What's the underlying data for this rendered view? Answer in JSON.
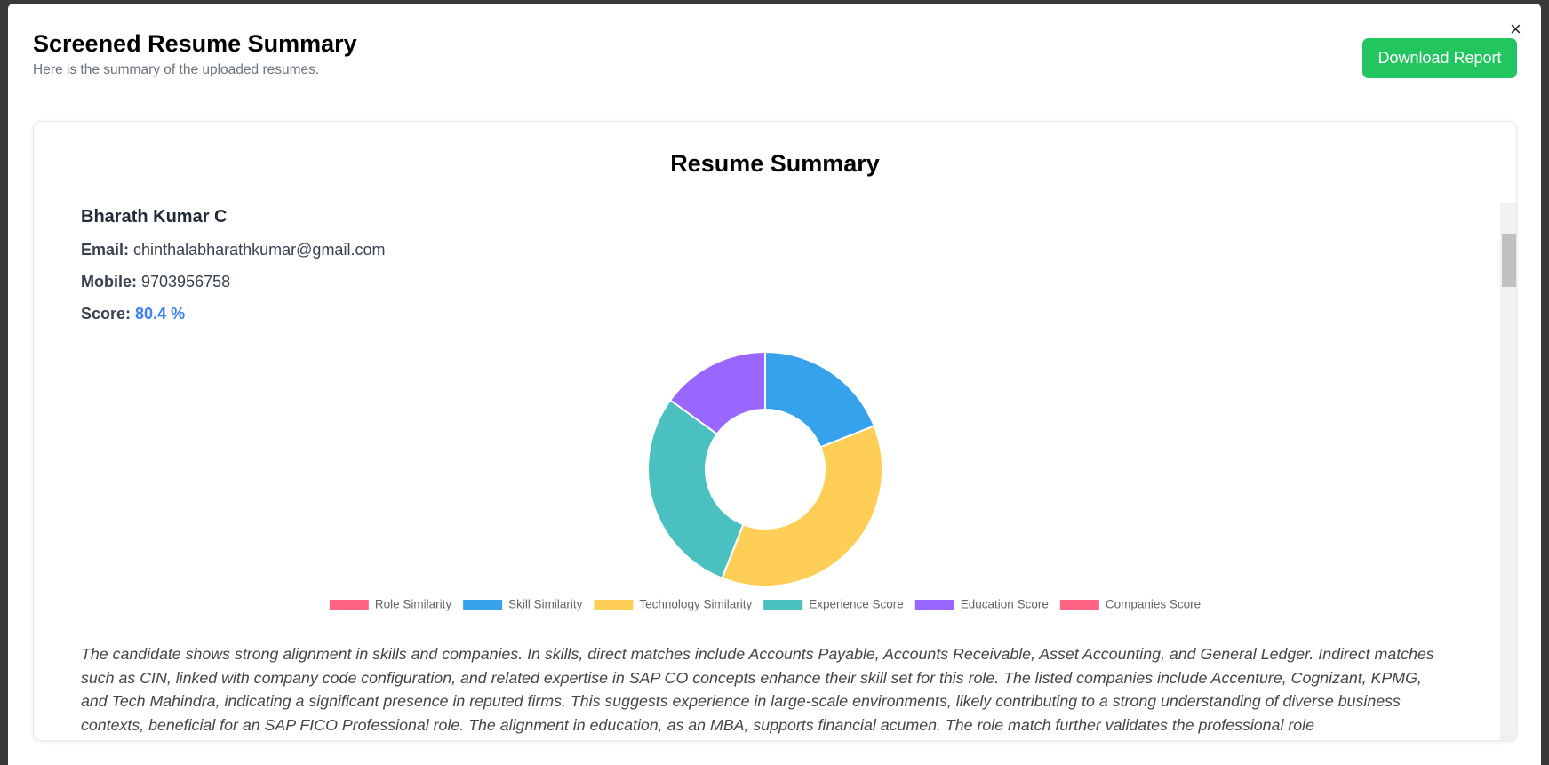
{
  "header": {
    "title": "Screened Resume Summary",
    "subtitle": "Here is the summary of the uploaded resumes.",
    "download_button": "Download Report",
    "close": "×"
  },
  "card": {
    "title": "Resume Summary",
    "candidate": {
      "name": "Bharath Kumar C",
      "email_label": "Email:",
      "email": "chinthalabharathkumar@gmail.com",
      "mobile_label": "Mobile:",
      "mobile": "9703956758",
      "score_label": "Score:",
      "score": "80.4 %"
    },
    "summary": "The candidate shows strong alignment in skills and companies. In skills, direct matches include Accounts Payable, Accounts Receivable, Asset Accounting, and General Ledger. Indirect matches such as CIN, linked with company code configuration, and related expertise in SAP CO concepts enhance their skill set for this role. The listed companies include Accenture, Cognizant, KPMG, and Tech Mahindra, indicating a significant presence in reputed firms. This suggests experience in large-scale environments, likely contributing to a strong understanding of diverse business contexts, beneficial for an SAP FICO Professional role. The alignment in education, as an MBA, supports financial acumen. The role match further validates the professional role"
  },
  "chart_data": {
    "type": "doughnut",
    "categories": [
      "Role Similarity",
      "Skill Similarity",
      "Technology Similarity",
      "Experience Score",
      "Education Score",
      "Companies Score"
    ],
    "values": [
      0,
      19,
      37,
      29,
      15,
      0
    ],
    "colors": [
      "#ff6384",
      "#36a2eb",
      "#ffce56",
      "#4bc0c0",
      "#9966ff",
      "#ff6384"
    ]
  }
}
